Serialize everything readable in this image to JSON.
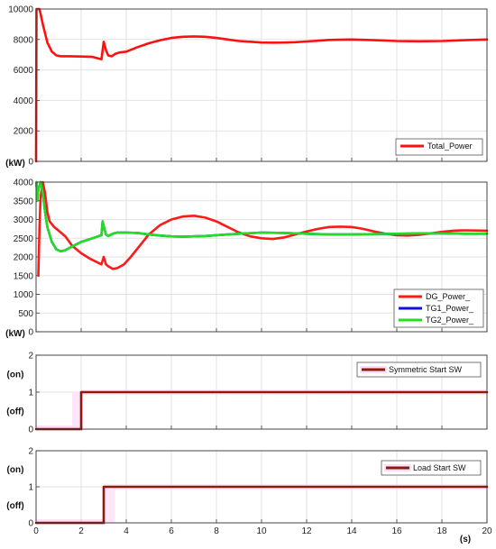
{
  "chart_data": [
    {
      "type": "line",
      "ylabel": "(kW)",
      "xlim": [
        0,
        20
      ],
      "ylim": [
        0,
        10000
      ],
      "yticks": [
        "0",
        "2000",
        "4000",
        "6000",
        "8000",
        "10000"
      ],
      "legend": "bottom-right",
      "grid": true,
      "series": [
        {
          "name": "Total_Power",
          "color": "#ff1010",
          "x": [
            0,
            0.01,
            0.02,
            0.15,
            0.3,
            0.5,
            0.7,
            0.9,
            1.1,
            1.5,
            2.0,
            2.5,
            2.9,
            3.0,
            3.1,
            3.2,
            3.35,
            3.5,
            3.7,
            4,
            4.5,
            5,
            5.5,
            6,
            6.5,
            7,
            7.5,
            8,
            8.5,
            9,
            9.5,
            10,
            10.5,
            11,
            11.5,
            12,
            13,
            14,
            15,
            16,
            17,
            18,
            19,
            20
          ],
          "y": [
            0,
            6000,
            10000,
            10000,
            9000,
            7800,
            7200,
            6950,
            6900,
            6900,
            6880,
            6860,
            6700,
            7850,
            7300,
            6950,
            6900,
            7050,
            7150,
            7200,
            7500,
            7750,
            7950,
            8100,
            8180,
            8200,
            8180,
            8100,
            8000,
            7900,
            7850,
            7800,
            7790,
            7800,
            7820,
            7870,
            7970,
            8000,
            7950,
            7900,
            7880,
            7900,
            7950,
            8000
          ]
        }
      ]
    },
    {
      "type": "line",
      "ylabel": "(kW)",
      "xlim": [
        0,
        20
      ],
      "ylim": [
        0,
        4000
      ],
      "yticks": [
        "0",
        "500",
        "1000",
        "1500",
        "2000",
        "2500",
        "3000",
        "3500",
        "4000"
      ],
      "legend": "bottom-right",
      "grid": true,
      "series": [
        {
          "name": "DG_Power_",
          "color": "#ff1a1a",
          "x": [
            0.1,
            0.15,
            0.2,
            0.3,
            0.4,
            0.5,
            0.6,
            0.8,
            1.0,
            1.3,
            1.6,
            2.0,
            2.4,
            2.9,
            3.0,
            3.05,
            3.1,
            3.2,
            3.4,
            3.6,
            3.9,
            4.2,
            4.6,
            5,
            5.5,
            6,
            6.5,
            7,
            7.5,
            8,
            8.5,
            9,
            9.5,
            10,
            10.5,
            11,
            11.5,
            12,
            12.5,
            13,
            13.5,
            14,
            14.5,
            15,
            15.5,
            16,
            16.5,
            17,
            17.5,
            18,
            18.5,
            19,
            20
          ],
          "y": [
            1500,
            2800,
            3600,
            4000,
            3700,
            3200,
            2950,
            2800,
            2700,
            2550,
            2300,
            2100,
            1950,
            1800,
            2000,
            1900,
            1800,
            1750,
            1680,
            1700,
            1800,
            2000,
            2300,
            2600,
            2850,
            3000,
            3080,
            3100,
            3050,
            2950,
            2800,
            2650,
            2550,
            2500,
            2480,
            2520,
            2600,
            2680,
            2750,
            2800,
            2810,
            2800,
            2750,
            2680,
            2620,
            2580,
            2570,
            2590,
            2630,
            2670,
            2700,
            2710,
            2700
          ]
        },
        {
          "name": "TG1_Power_",
          "color": "#1010e0",
          "x": [
            0.02,
            0.05,
            0.1,
            0.2,
            0.3,
            0.4,
            0.5,
            0.7,
            0.9,
            1.1,
            1.3,
            1.6,
            2.0,
            2.5,
            2.9,
            2.95,
            3.0,
            3.05,
            3.1,
            3.2,
            3.4,
            3.6,
            4,
            4.5,
            5,
            5.5,
            6,
            6.5,
            7,
            7.5,
            8,
            8.5,
            9,
            10,
            11,
            12,
            13,
            14,
            15,
            16,
            17,
            18,
            19,
            20
          ],
          "y": [
            4000,
            3500,
            3800,
            4000,
            3700,
            3200,
            2800,
            2400,
            2200,
            2150,
            2180,
            2280,
            2400,
            2500,
            2580,
            2950,
            2820,
            2700,
            2600,
            2560,
            2620,
            2650,
            2650,
            2640,
            2600,
            2570,
            2550,
            2540,
            2550,
            2560,
            2580,
            2600,
            2620,
            2650,
            2640,
            2620,
            2600,
            2600,
            2610,
            2620,
            2630,
            2630,
            2620,
            2620
          ]
        },
        {
          "name": "TG2_Power_",
          "color": "#22dd22",
          "x": [
            0.02,
            0.05,
            0.1,
            0.2,
            0.3,
            0.4,
            0.5,
            0.7,
            0.9,
            1.1,
            1.3,
            1.6,
            2.0,
            2.5,
            2.9,
            2.95,
            3.0,
            3.05,
            3.1,
            3.2,
            3.4,
            3.6,
            4,
            4.5,
            5,
            5.5,
            6,
            6.5,
            7,
            7.5,
            8,
            8.5,
            9,
            10,
            11,
            12,
            13,
            14,
            15,
            16,
            17,
            18,
            19,
            20
          ],
          "y": [
            4000,
            3500,
            3800,
            4000,
            3700,
            3200,
            2800,
            2400,
            2200,
            2150,
            2180,
            2280,
            2400,
            2500,
            2580,
            2950,
            2820,
            2700,
            2600,
            2560,
            2620,
            2650,
            2650,
            2640,
            2600,
            2570,
            2550,
            2540,
            2550,
            2560,
            2580,
            2600,
            2620,
            2650,
            2640,
            2620,
            2600,
            2600,
            2610,
            2620,
            2630,
            2630,
            2620,
            2620
          ]
        }
      ]
    },
    {
      "type": "line",
      "ylim": [
        0,
        2
      ],
      "xlim": [
        0,
        20
      ],
      "yticks": [
        "0",
        "1",
        "2"
      ],
      "ylabels": [
        "(on)",
        "(off)"
      ],
      "legend": "top-right",
      "grid": true,
      "series": [
        {
          "name": "Symmetric Start SW",
          "color": "#8b1a0a",
          "x": [
            0,
            2,
            2,
            20
          ],
          "y": [
            0,
            0,
            1,
            1
          ]
        }
      ]
    },
    {
      "type": "line",
      "ylim": [
        0,
        2
      ],
      "xlim": [
        0,
        20
      ],
      "yticks": [
        "0",
        "1",
        "2"
      ],
      "xticks": [
        "0",
        "2",
        "4",
        "6",
        "8",
        "10",
        "12",
        "14",
        "16",
        "18",
        "20"
      ],
      "xlabel": "(s)",
      "ylabels": [
        "(on)",
        "(off)"
      ],
      "legend": "top-right",
      "grid": true,
      "series": [
        {
          "name": "Load Start SW",
          "color": "#8b1a0a",
          "x": [
            0,
            3,
            3,
            20
          ],
          "y": [
            0,
            0,
            1,
            1
          ]
        }
      ]
    }
  ]
}
